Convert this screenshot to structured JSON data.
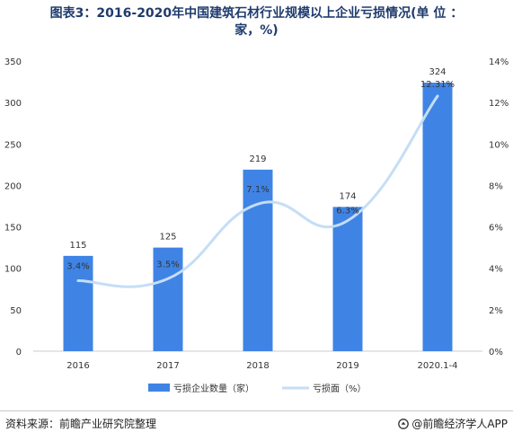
{
  "title_line1": "图表3：2016-2020年中国建筑石材行业规模以上企业亏损情况(单 位 ：",
  "title_line2": "家，%)",
  "source": "资料来源：前瞻产业研究院整理",
  "brand": "@前瞻经济学人APP",
  "colors": {
    "bar": "#3f84e5",
    "line": "#c5def5",
    "axis": "#cccccc",
    "text": "#333333",
    "title": "#1f3b6e"
  },
  "chart_data": {
    "type": "bar",
    "title": "图表3：2016-2020年中国建筑石材行业规模以上企业亏损情况(单 位 ：家，%)",
    "categories": [
      "2016",
      "2017",
      "2018",
      "2019",
      "2020.1-4"
    ],
    "series": [
      {
        "name": "亏损企业数量（家）",
        "type": "bar",
        "axis": "left",
        "values": [
          115,
          125,
          219,
          174,
          324
        ],
        "labels": [
          "115",
          "125",
          "219",
          "174",
          "324"
        ]
      },
      {
        "name": "亏损面（%）",
        "type": "line",
        "axis": "right",
        "smooth": true,
        "values": [
          3.4,
          3.5,
          7.1,
          6.3,
          12.31
        ],
        "labels": [
          "3.4%",
          "3.5%",
          "7.1%",
          "6.3%",
          "12.31%"
        ]
      }
    ],
    "left_axis": {
      "ylim": [
        0,
        350
      ],
      "ticks": [
        "0",
        "50",
        "100",
        "150",
        "200",
        "250",
        "300",
        "350"
      ]
    },
    "right_axis": {
      "ylim": [
        0,
        14
      ],
      "ticks": [
        "0%",
        "2%",
        "4%",
        "6%",
        "8%",
        "10%",
        "12%",
        "14%"
      ]
    },
    "grid": false,
    "legend_position": "bottom"
  }
}
